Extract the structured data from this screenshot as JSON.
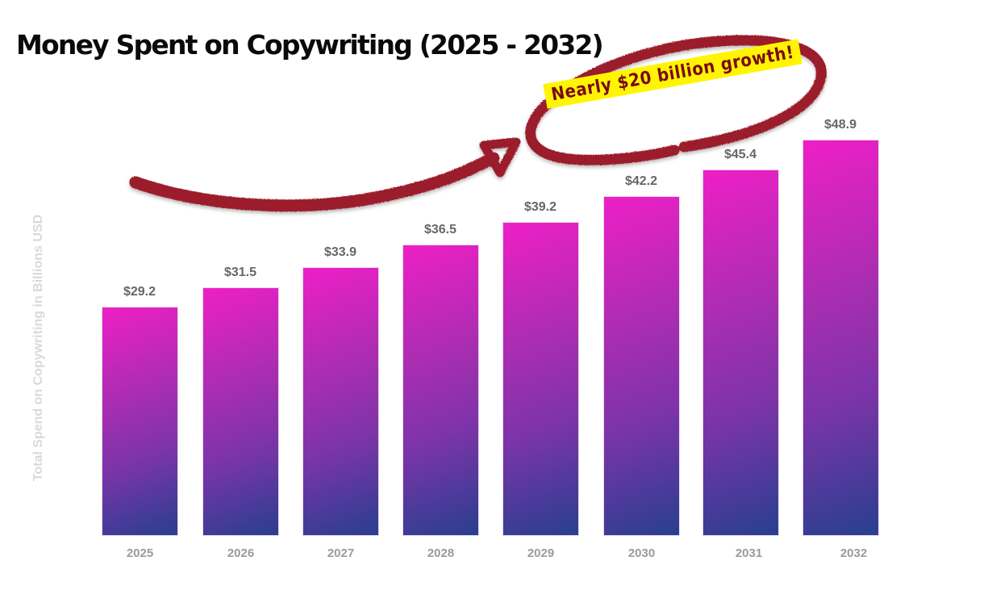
{
  "chart_data": {
    "type": "bar",
    "title": "Money Spent on Copywriting (2025 - 2032)",
    "xlabel": "",
    "ylabel": "Total Spend on Copywriting in Billions USD",
    "categories": [
      "2025",
      "2026",
      "2027",
      "2028",
      "2029",
      "2030",
      "2031",
      "2032"
    ],
    "values": [
      29.2,
      31.5,
      33.9,
      36.5,
      39.2,
      42.2,
      45.4,
      48.9
    ],
    "value_labels": [
      "$29.2",
      "$31.5",
      "$33.9",
      "$36.5",
      "$39.2",
      "$42.2",
      "$45.4",
      "$48.9"
    ],
    "grid": false,
    "legend": null,
    "bar_gradient": [
      "#ee1fc6",
      "#283f8f"
    ],
    "annotations": [
      {
        "text": "Nearly $20 billion growth!",
        "style": "yellow highlight circled in red marker with arrow",
        "highlight_color": "#fff500",
        "text_color": "#7a0a16",
        "marker_color": "#9b1c2a"
      }
    ]
  },
  "annotation": {
    "banner_text": "Nearly $20 billion growth!"
  }
}
